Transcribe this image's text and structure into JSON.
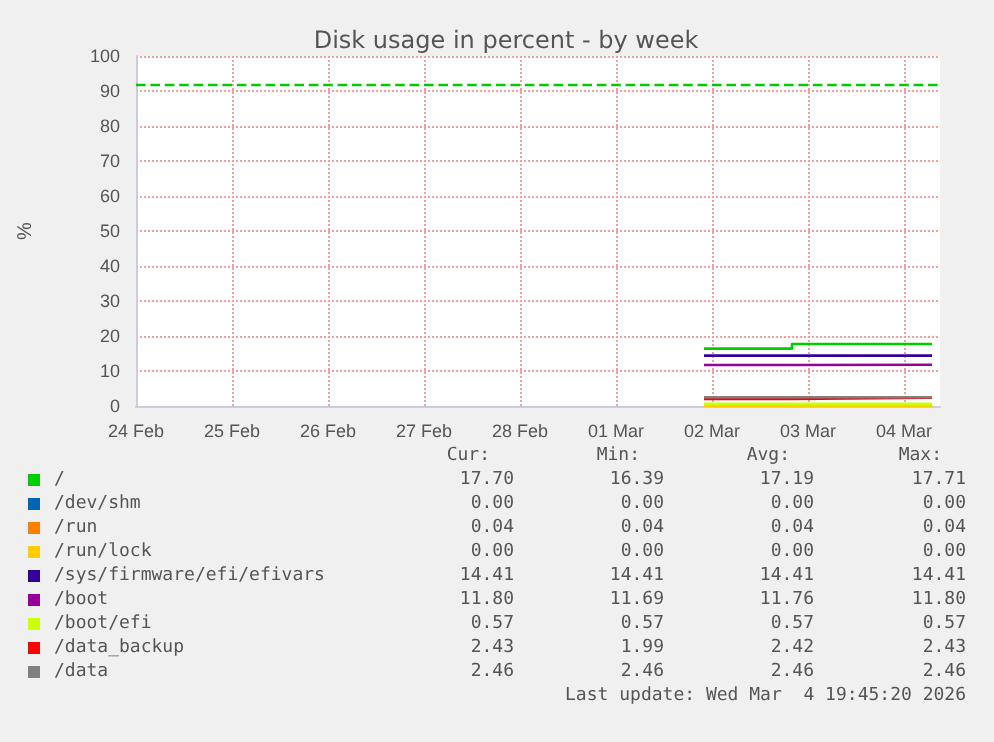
{
  "chart_data": {
    "type": "step",
    "title": "Disk usage in percent - by week",
    "ylabel": "%",
    "xlim": [
      "2026-02-24",
      "2026-03-04T09:00"
    ],
    "xticks": [
      {
        "value": "2026-02-24",
        "label": "24 Feb"
      },
      {
        "value": "2026-02-25",
        "label": "25 Feb"
      },
      {
        "value": "2026-02-26",
        "label": "26 Feb"
      },
      {
        "value": "2026-02-27",
        "label": "27 Feb"
      },
      {
        "value": "2026-02-28",
        "label": "28 Feb"
      },
      {
        "value": "2026-03-01",
        "label": "01 Mar"
      },
      {
        "value": "2026-03-02",
        "label": "02 Mar"
      },
      {
        "value": "2026-03-03",
        "label": "03 Mar"
      },
      {
        "value": "2026-03-04",
        "label": "04 Mar"
      }
    ],
    "ylim": [
      0,
      100
    ],
    "yticks": [
      0,
      10,
      20,
      30,
      40,
      50,
      60,
      70,
      80,
      90,
      100
    ],
    "x": [
      "2026-03-01T22:00",
      "2026-03-02T20:00",
      "2026-03-04T07:00"
    ],
    "series": [
      {
        "name": "/",
        "color": "#00cc00",
        "values": [
          16.4,
          17.7,
          17.7
        ]
      },
      {
        "name": "/dev/shm",
        "color": "#0066b3",
        "values": [
          null,
          null,
          null
        ]
      },
      {
        "name": "/run",
        "color": "#ff8000",
        "values": [
          null,
          null,
          null
        ]
      },
      {
        "name": "/run/lock",
        "color": "#ffcc00",
        "values": [
          0,
          0,
          0
        ]
      },
      {
        "name": "/sys/firmware/efi/efivars",
        "color": "#330099",
        "values": [
          14.4,
          14.4,
          14.4
        ]
      },
      {
        "name": "/boot",
        "color": "#990099",
        "values": [
          11.7,
          11.8,
          11.8
        ]
      },
      {
        "name": "/boot/efi",
        "color": "#ccff00",
        "values": [
          0.6,
          0.6,
          0.6
        ]
      },
      {
        "name": "/data_backup",
        "color": "#ff0000",
        "values": [
          2.0,
          2.4,
          2.4
        ]
      },
      {
        "name": "/data",
        "color": "#808080",
        "values": [
          2.5,
          2.5,
          2.5
        ]
      }
    ],
    "ref_lines": [
      {
        "axis": "y",
        "value": 92,
        "color": "#00cc00",
        "line_style": "dashed"
      }
    ],
    "grid": true,
    "legend": "bottom",
    "annotations": [
      "Cur:",
      "Min:",
      "Avg:",
      "Max:",
      "17.70",
      "16.39",
      "17.19",
      "17.71",
      "0.00",
      "0.00",
      "0.00",
      "0.00",
      "0.04",
      "0.04",
      "0.04",
      "0.04",
      "0.00",
      "0.00",
      "0.00",
      "0.00",
      "14.41",
      "14.41",
      "14.41",
      "14.41",
      "11.80",
      "11.69",
      "11.76",
      "11.80",
      "0.57",
      "0.57",
      "0.57",
      "0.57",
      "2.43",
      "1.99",
      "2.42",
      "2.43",
      "2.46",
      "2.46",
      "2.46",
      "2.46",
      "Last update: Wed Mar  4 19:45:20 2026"
    ]
  }
}
